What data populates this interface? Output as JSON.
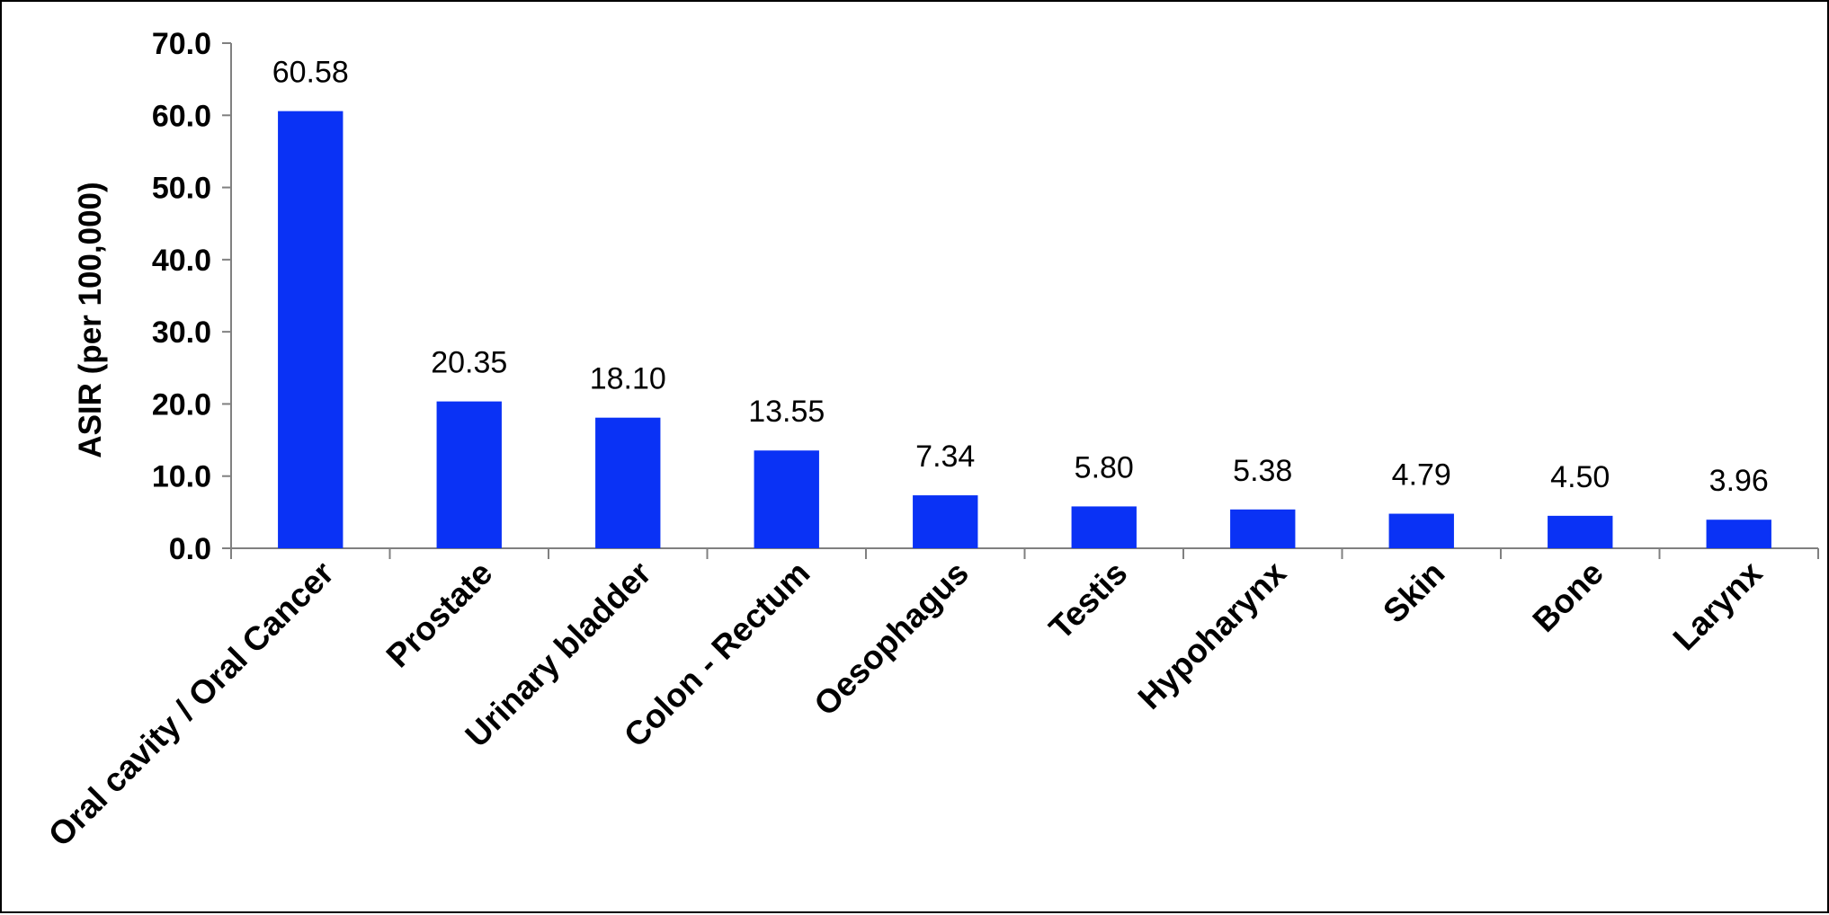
{
  "chart_data": {
    "type": "bar",
    "title": "",
    "xlabel": "",
    "ylabel": "ASIR (per 100,000)",
    "ylim": [
      0,
      70
    ],
    "ytick_step": 10,
    "ytick_labels": [
      "0.0",
      "10.0",
      "20.0",
      "30.0",
      "40.0",
      "50.0",
      "60.0",
      "70.0"
    ],
    "grid": false,
    "legend": "none",
    "bar_color": "#0a32f5",
    "categories": [
      "Oral cavity / Oral Cancer",
      "Prostate",
      "Urinary bladder",
      "Colon - Rectum",
      "Oesophagus",
      "Testis",
      "Hypoharynx",
      "Skin",
      "Bone",
      "Larynx"
    ],
    "values": [
      60.58,
      20.35,
      18.1,
      13.55,
      7.34,
      5.8,
      5.38,
      4.79,
      4.5,
      3.96
    ],
    "data_labels": [
      "60.58",
      "20.35",
      "18.10",
      "13.55",
      "7.34",
      "5.80",
      "5.38",
      "4.79",
      "4.50",
      "3.96"
    ]
  }
}
